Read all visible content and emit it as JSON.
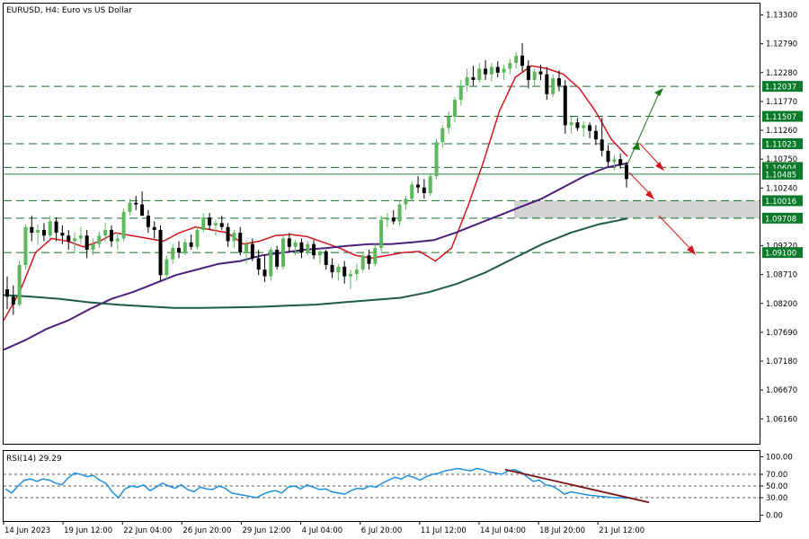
{
  "chart_data": [
    {
      "type": "candlestick",
      "title": "EURUSD, H4:  Euro vs US Dollar",
      "ylim": [
        1.0572,
        1.135
      ],
      "y_ticks": [
        "1.13300",
        "1.12790",
        "1.12280",
        "1.11770",
        "1.11260",
        "1.10750",
        "1.10240",
        "1.09220",
        "1.08710",
        "1.08200",
        "1.07690",
        "1.07180",
        "1.06670",
        "1.06160"
      ],
      "x_ticks": [
        "14 Jun 2023",
        "19 Jun 12:00",
        "22 Jun 04:00",
        "26 Jun 20:00",
        "29 Jun 12:00",
        "4 Jul 04:00",
        "6 Jul 20:00",
        "11 Jul 12:00",
        "14 Jul 04:00",
        "18 Jul 20:00",
        "21 Jul 12:00"
      ],
      "levels": [
        {
          "value": 1.12037,
          "label": "1.12037",
          "style": "dashed"
        },
        {
          "value": 1.11507,
          "label": "1.11507",
          "style": "dashed"
        },
        {
          "value": 1.11023,
          "label": "1.11023",
          "style": "dashed"
        },
        {
          "value": 1.10604,
          "label": "1.10604",
          "style": "dashed"
        },
        {
          "value": 1.10485,
          "label": "1.10485",
          "style": "solid"
        },
        {
          "value": 1.10016,
          "label": "1.10016",
          "style": "dashed"
        },
        {
          "value": 1.09708,
          "label": "1.09708",
          "style": "dashed"
        },
        {
          "value": 1.091,
          "label": "1.09100",
          "style": "dashed"
        }
      ],
      "zone": {
        "from": 1.09708,
        "to": 1.10016
      },
      "candles": [
        [
          1.0845,
          1.0868,
          1.081,
          1.0832
        ],
        [
          1.0832,
          1.0852,
          1.08,
          1.0818
        ],
        [
          1.0818,
          1.0895,
          1.0815,
          1.0888
        ],
        [
          1.0888,
          1.096,
          1.088,
          1.0955
        ],
        [
          1.0955,
          1.0975,
          1.093,
          1.0945
        ],
        [
          1.0945,
          1.096,
          1.0925,
          1.095
        ],
        [
          1.095,
          1.0962,
          1.093,
          1.094
        ],
        [
          1.094,
          1.0975,
          1.0935,
          1.0965
        ],
        [
          1.0965,
          1.0972,
          1.093,
          1.0945
        ],
        [
          1.0945,
          1.0958,
          1.0925,
          1.094
        ],
        [
          1.094,
          1.095,
          1.0915,
          1.093
        ],
        [
          1.093,
          1.0945,
          1.091,
          1.0935
        ],
        [
          1.0935,
          1.0955,
          1.0925,
          1.094
        ],
        [
          1.094,
          1.095,
          1.09,
          1.0915
        ],
        [
          1.0915,
          1.0935,
          1.0905,
          1.0925
        ],
        [
          1.0925,
          1.0948,
          1.0918,
          1.094
        ],
        [
          1.094,
          1.0962,
          1.093,
          1.095
        ],
        [
          1.095,
          1.0958,
          1.092,
          1.093
        ],
        [
          1.093,
          1.0945,
          1.0915,
          1.0935
        ],
        [
          1.0935,
          1.0988,
          1.093,
          1.0982
        ],
        [
          1.0982,
          1.1005,
          1.0975,
          1.0998
        ],
        [
          1.0998,
          1.101,
          1.0985,
          1.0995
        ],
        [
          1.0995,
          1.1018,
          1.098,
          1.0975
        ],
        [
          1.0975,
          1.0985,
          1.0945,
          1.0955
        ],
        [
          1.0955,
          1.0965,
          1.0935,
          1.095
        ],
        [
          1.095,
          1.0958,
          1.086,
          1.087
        ],
        [
          1.087,
          1.0905,
          1.086,
          1.0898
        ],
        [
          1.0898,
          1.0925,
          1.089,
          1.0918
        ],
        [
          1.0918,
          1.093,
          1.09,
          1.091
        ],
        [
          1.091,
          1.0935,
          1.0905,
          1.0928
        ],
        [
          1.0928,
          1.0942,
          1.0915,
          1.092
        ],
        [
          1.092,
          1.0955,
          1.0915,
          1.095
        ],
        [
          1.095,
          1.098,
          1.0945,
          1.0972
        ],
        [
          1.0972,
          1.098,
          1.095,
          1.0958
        ],
        [
          1.0958,
          1.0968,
          1.094,
          1.0962
        ],
        [
          1.0962,
          1.0975,
          1.095,
          1.0955
        ],
        [
          1.0955,
          1.0962,
          1.092,
          1.093
        ],
        [
          1.093,
          1.095,
          1.0918,
          1.0945
        ],
        [
          1.0945,
          1.0955,
          1.0905,
          1.091
        ],
        [
          1.091,
          1.093,
          1.089,
          1.0925
        ],
        [
          1.0925,
          1.0935,
          1.0895,
          1.09
        ],
        [
          1.09,
          1.0915,
          1.087,
          1.088
        ],
        [
          1.088,
          1.0905,
          1.0858,
          1.0868
        ],
        [
          1.0868,
          1.092,
          1.086,
          1.0915
        ],
        [
          1.0915,
          1.0922,
          1.088,
          1.0885
        ],
        [
          1.0885,
          1.094,
          1.088,
          1.0935
        ],
        [
          1.0935,
          1.0945,
          1.091,
          1.092
        ],
        [
          1.092,
          1.0932,
          1.0905,
          1.0928
        ],
        [
          1.0928,
          1.0935,
          1.09,
          1.091
        ],
        [
          1.091,
          1.093,
          1.0905,
          1.0925
        ],
        [
          1.0925,
          1.0932,
          1.0898,
          1.0905
        ],
        [
          1.0905,
          1.0918,
          1.089,
          1.0912
        ],
        [
          1.0912,
          1.0915,
          1.088,
          1.0888
        ],
        [
          1.0888,
          1.09,
          1.0865,
          1.0875
        ],
        [
          1.0875,
          1.089,
          1.086,
          1.0885
        ],
        [
          1.0885,
          1.0895,
          1.0855,
          1.0868
        ],
        [
          1.0868,
          1.088,
          1.0845,
          1.0872
        ],
        [
          1.0872,
          1.089,
          1.086,
          1.088
        ],
        [
          1.088,
          1.091,
          1.0875,
          1.0905
        ],
        [
          1.0905,
          1.0915,
          1.088,
          1.089
        ],
        [
          1.089,
          1.0925,
          1.0885,
          1.0918
        ],
        [
          1.0918,
          1.0975,
          1.0912,
          1.0968
        ],
        [
          1.0968,
          1.098,
          1.0955,
          1.0972
        ],
        [
          1.0972,
          1.0985,
          1.096,
          1.0965
        ],
        [
          1.0965,
          1.1,
          1.0958,
          1.0995
        ],
        [
          1.0995,
          1.101,
          1.0985,
          1.1005
        ],
        [
          1.1005,
          1.1035,
          1.1,
          1.103
        ],
        [
          1.103,
          1.1045,
          1.1015,
          1.1025
        ],
        [
          1.1025,
          1.104,
          1.1005,
          1.1015
        ],
        [
          1.1015,
          1.105,
          1.101,
          1.1045
        ],
        [
          1.1045,
          1.111,
          1.104,
          1.1105
        ],
        [
          1.1105,
          1.1135,
          1.1095,
          1.113
        ],
        [
          1.113,
          1.116,
          1.112,
          1.115
        ],
        [
          1.115,
          1.1185,
          1.114,
          1.118
        ],
        [
          1.118,
          1.1215,
          1.117,
          1.1205
        ],
        [
          1.1205,
          1.1235,
          1.1195,
          1.122
        ],
        [
          1.122,
          1.124,
          1.1205,
          1.1215
        ],
        [
          1.1215,
          1.1245,
          1.121,
          1.1235
        ],
        [
          1.1235,
          1.125,
          1.1215,
          1.1225
        ],
        [
          1.1225,
          1.1245,
          1.1212,
          1.1238
        ],
        [
          1.1238,
          1.1248,
          1.122,
          1.1228
        ],
        [
          1.1228,
          1.1242,
          1.1215,
          1.1235
        ],
        [
          1.1235,
          1.1252,
          1.1225,
          1.1245
        ],
        [
          1.1245,
          1.1265,
          1.1235,
          1.1258
        ],
        [
          1.1258,
          1.128,
          1.123,
          1.124
        ],
        [
          1.124,
          1.125,
          1.12,
          1.1215
        ],
        [
          1.1215,
          1.1235,
          1.1205,
          1.123
        ],
        [
          1.123,
          1.1242,
          1.1215,
          1.1225
        ],
        [
          1.1225,
          1.1238,
          1.118,
          1.119
        ],
        [
          1.119,
          1.1225,
          1.1185,
          1.1218
        ],
        [
          1.1218,
          1.1232,
          1.1195,
          1.1205
        ],
        [
          1.1205,
          1.1215,
          1.112,
          1.1135
        ],
        [
          1.1135,
          1.115,
          1.112,
          1.114
        ],
        [
          1.114,
          1.1148,
          1.1125,
          1.113
        ],
        [
          1.113,
          1.1142,
          1.1115,
          1.1135
        ],
        [
          1.1135,
          1.114,
          1.1112,
          1.1125
        ],
        [
          1.1125,
          1.1135,
          1.11,
          1.111
        ],
        [
          1.111,
          1.1148,
          1.108,
          1.109
        ],
        [
          1.109,
          1.11,
          1.106,
          1.107
        ],
        [
          1.107,
          1.1082,
          1.1055,
          1.1075
        ],
        [
          1.1075,
          1.1085,
          1.1058,
          1.1065
        ],
        [
          1.1065,
          1.107,
          1.1025,
          1.104
        ]
      ],
      "series": [
        {
          "values": [
            1.079,
            1.084,
            1.091,
            1.0935,
            1.093,
            1.092,
            1.093,
            1.0945,
            1.094,
            1.0935,
            1.093,
            1.0945,
            1.0955,
            1.095,
            1.0945,
            1.0925,
            1.093,
            1.094,
            1.0942,
            1.0938,
            1.0928,
            1.0918,
            1.0905,
            1.09,
            1.0905,
            1.091,
            1.0912,
            1.0895,
            1.0918,
            1.099,
            1.107,
            1.116,
            1.122,
            1.124,
            1.1235,
            1.1225,
            1.12,
            1.116,
            1.111,
            1.108
          ]
        },
        {
          "values": [
            1.0738,
            1.0755,
            1.0775,
            1.079,
            1.081,
            1.0828,
            1.084,
            1.0855,
            1.087,
            1.088,
            1.089,
            1.0895,
            1.0905,
            1.091,
            1.0915,
            1.0918,
            1.0922,
            1.0925,
            1.0925,
            1.0928,
            1.0932,
            1.0945,
            1.096,
            1.0975,
            1.099,
            1.1005,
            1.1025,
            1.1045,
            1.106,
            1.1068
          ]
        },
        {
          "values": [
            1.0835,
            1.0832,
            1.0828,
            1.0822,
            1.0818,
            1.0815,
            1.0812,
            1.0812,
            1.0813,
            1.0814,
            1.0816,
            1.0818,
            1.0822,
            1.0826,
            1.083,
            1.084,
            1.0855,
            1.0875,
            1.09,
            1.0925,
            1.0945,
            1.096,
            1.097
          ]
        }
      ]
    },
    {
      "type": "line",
      "title": "RSI(14) 29.29",
      "ylim": [
        -10,
        110
      ],
      "y_ticks": [
        "100.00",
        "70.00",
        "50.00",
        "30.00",
        "0.00"
      ],
      "levels": [
        70,
        50,
        30
      ],
      "series": [
        {
          "values": [
            45,
            38,
            50,
            60,
            62,
            58,
            62,
            60,
            55,
            52,
            64,
            72,
            70,
            66,
            68,
            60,
            55,
            40,
            30,
            45,
            50,
            48,
            52,
            42,
            48,
            55,
            50,
            46,
            52,
            44,
            40,
            48,
            45,
            44,
            50,
            46,
            38,
            36,
            34,
            32,
            30,
            36,
            40,
            42,
            38,
            48,
            50,
            45,
            52,
            48,
            44,
            45,
            40,
            38,
            36,
            42,
            46,
            45,
            50,
            48,
            55,
            60,
            65,
            62,
            68,
            65,
            60,
            66,
            70,
            72,
            76,
            78,
            80,
            78,
            76,
            80,
            78,
            74,
            72,
            70,
            76,
            78,
            74,
            66,
            58,
            60,
            52,
            50,
            44,
            36,
            40,
            38,
            36,
            34,
            33,
            32,
            31,
            30,
            30,
            29
          ]
        }
      ]
    }
  ]
}
